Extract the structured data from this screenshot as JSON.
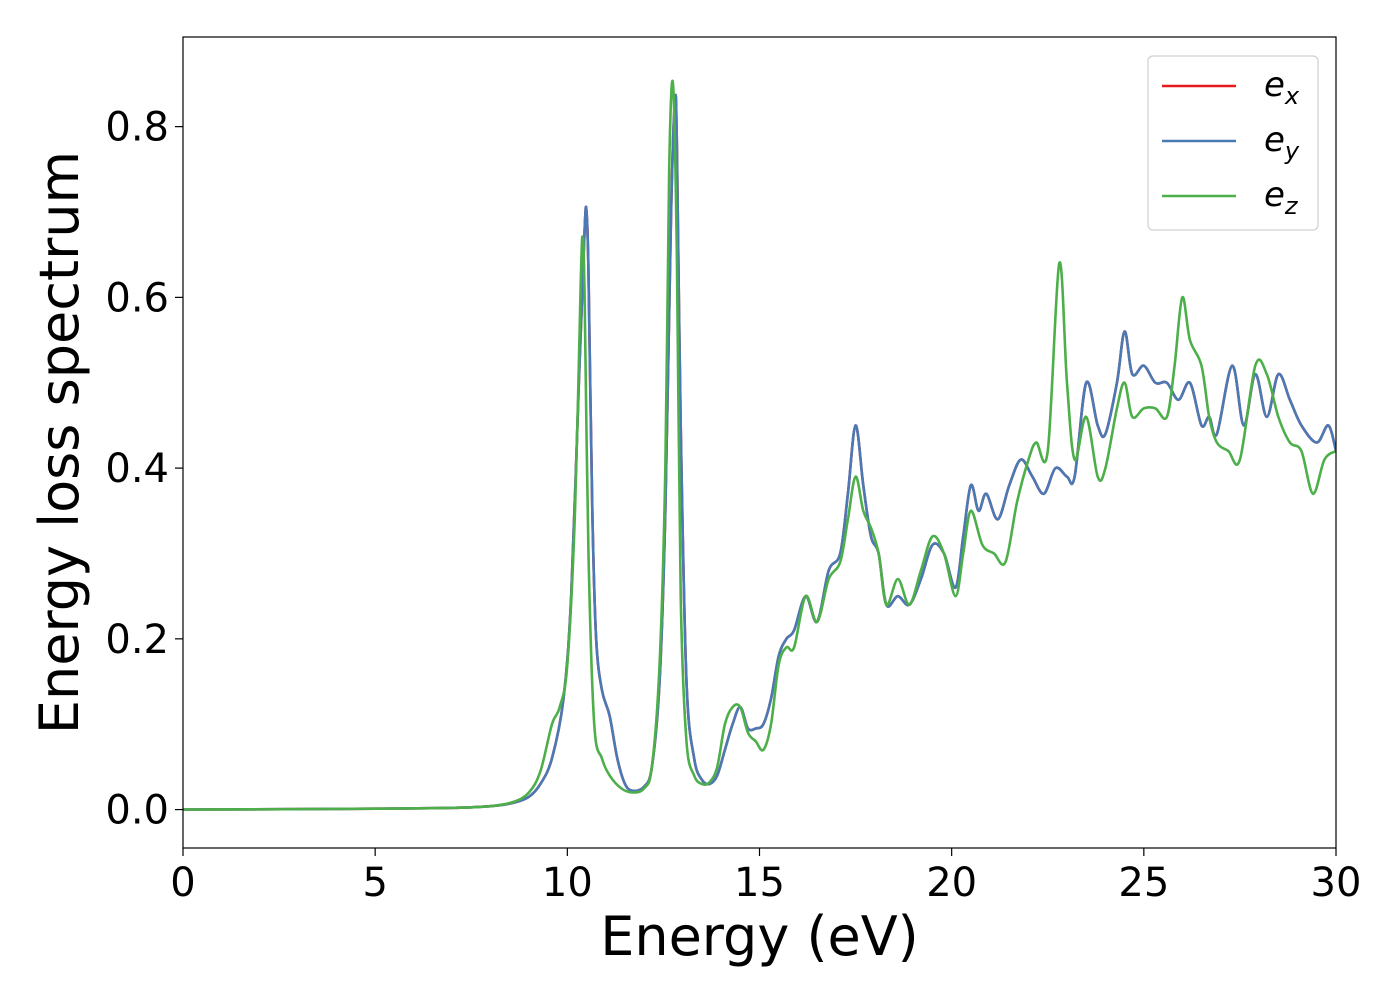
{
  "chart_data": {
    "type": "line",
    "title": "",
    "xlabel": "Energy (eV)",
    "ylabel": "Energy loss spectrum",
    "xlim": [
      0,
      30
    ],
    "ylim": [
      -0.045,
      0.905
    ],
    "xticks": [
      0,
      5,
      10,
      15,
      20,
      25,
      30
    ],
    "xtick_labels": [
      "0",
      "5",
      "10",
      "15",
      "20",
      "25",
      "30"
    ],
    "yticks": [
      0.0,
      0.2,
      0.4,
      0.6,
      0.8
    ],
    "ytick_labels": [
      "0.0",
      "0.2",
      "0.4",
      "0.6",
      "0.8"
    ],
    "grid": false,
    "legend_position": "top-right",
    "series": [
      {
        "name": "e_x",
        "legend_main": "e",
        "legend_sub": "x",
        "color": "#e41a1c",
        "points": [
          [
            0,
            0
          ],
          [
            5,
            0.001
          ],
          [
            7,
            0.002
          ],
          [
            8,
            0.004
          ],
          [
            8.6,
            0.008
          ],
          [
            9,
            0.015
          ],
          [
            9.3,
            0.03
          ],
          [
            9.6,
            0.06
          ],
          [
            9.9,
            0.13
          ],
          [
            10.1,
            0.25
          ],
          [
            10.3,
            0.5
          ],
          [
            10.45,
            0.68
          ],
          [
            10.5,
            0.7
          ],
          [
            10.55,
            0.63
          ],
          [
            10.65,
            0.35
          ],
          [
            10.75,
            0.2
          ],
          [
            10.9,
            0.14
          ],
          [
            11.1,
            0.11
          ],
          [
            11.3,
            0.06
          ],
          [
            11.5,
            0.03
          ],
          [
            11.7,
            0.022
          ],
          [
            12.0,
            0.027
          ],
          [
            12.2,
            0.05
          ],
          [
            12.4,
            0.15
          ],
          [
            12.55,
            0.35
          ],
          [
            12.7,
            0.7
          ],
          [
            12.8,
            0.83
          ],
          [
            12.85,
            0.78
          ],
          [
            12.95,
            0.45
          ],
          [
            13.1,
            0.15
          ],
          [
            13.3,
            0.06
          ],
          [
            13.5,
            0.035
          ],
          [
            13.7,
            0.03
          ],
          [
            13.9,
            0.04
          ],
          [
            14.1,
            0.07
          ],
          [
            14.3,
            0.1
          ],
          [
            14.5,
            0.12
          ],
          [
            14.7,
            0.095
          ],
          [
            14.9,
            0.095
          ],
          [
            15.1,
            0.1
          ],
          [
            15.3,
            0.13
          ],
          [
            15.5,
            0.18
          ],
          [
            15.7,
            0.2
          ],
          [
            15.9,
            0.21
          ],
          [
            16.2,
            0.25
          ],
          [
            16.5,
            0.22
          ],
          [
            16.8,
            0.28
          ],
          [
            17.1,
            0.3
          ],
          [
            17.3,
            0.37
          ],
          [
            17.5,
            0.45
          ],
          [
            17.7,
            0.38
          ],
          [
            17.9,
            0.32
          ],
          [
            18.1,
            0.3
          ],
          [
            18.3,
            0.24
          ],
          [
            18.6,
            0.25
          ],
          [
            18.9,
            0.24
          ],
          [
            19.2,
            0.27
          ],
          [
            19.5,
            0.31
          ],
          [
            19.8,
            0.3
          ],
          [
            20.1,
            0.26
          ],
          [
            20.3,
            0.32
          ],
          [
            20.5,
            0.38
          ],
          [
            20.7,
            0.35
          ],
          [
            20.9,
            0.37
          ],
          [
            21.2,
            0.34
          ],
          [
            21.5,
            0.38
          ],
          [
            21.8,
            0.41
          ],
          [
            22.1,
            0.39
          ],
          [
            22.4,
            0.37
          ],
          [
            22.7,
            0.4
          ],
          [
            23.0,
            0.39
          ],
          [
            23.2,
            0.39
          ],
          [
            23.5,
            0.5
          ],
          [
            23.8,
            0.45
          ],
          [
            24.0,
            0.44
          ],
          [
            24.3,
            0.5
          ],
          [
            24.5,
            0.56
          ],
          [
            24.7,
            0.51
          ],
          [
            25.0,
            0.52
          ],
          [
            25.3,
            0.5
          ],
          [
            25.6,
            0.5
          ],
          [
            25.9,
            0.48
          ],
          [
            26.2,
            0.5
          ],
          [
            26.5,
            0.45
          ],
          [
            26.7,
            0.46
          ],
          [
            26.9,
            0.44
          ],
          [
            27.3,
            0.52
          ],
          [
            27.6,
            0.45
          ],
          [
            27.9,
            0.51
          ],
          [
            28.2,
            0.46
          ],
          [
            28.5,
            0.51
          ],
          [
            28.8,
            0.48
          ],
          [
            29.1,
            0.45
          ],
          [
            29.5,
            0.43
          ],
          [
            29.8,
            0.45
          ],
          [
            30,
            0.42
          ]
        ]
      },
      {
        "name": "e_y",
        "legend_main": "e",
        "legend_sub": "y",
        "color": "#4a7ab5",
        "points": [
          [
            0,
            0
          ],
          [
            5,
            0.001
          ],
          [
            7,
            0.002
          ],
          [
            8,
            0.004
          ],
          [
            8.6,
            0.008
          ],
          [
            9,
            0.015
          ],
          [
            9.3,
            0.03
          ],
          [
            9.6,
            0.06
          ],
          [
            9.9,
            0.13
          ],
          [
            10.1,
            0.25
          ],
          [
            10.3,
            0.5
          ],
          [
            10.45,
            0.68
          ],
          [
            10.5,
            0.7
          ],
          [
            10.55,
            0.63
          ],
          [
            10.65,
            0.35
          ],
          [
            10.75,
            0.2
          ],
          [
            10.9,
            0.14
          ],
          [
            11.1,
            0.11
          ],
          [
            11.3,
            0.06
          ],
          [
            11.5,
            0.03
          ],
          [
            11.7,
            0.022
          ],
          [
            12.0,
            0.027
          ],
          [
            12.2,
            0.05
          ],
          [
            12.4,
            0.15
          ],
          [
            12.55,
            0.35
          ],
          [
            12.7,
            0.7
          ],
          [
            12.8,
            0.83
          ],
          [
            12.85,
            0.78
          ],
          [
            12.95,
            0.45
          ],
          [
            13.1,
            0.15
          ],
          [
            13.3,
            0.06
          ],
          [
            13.5,
            0.035
          ],
          [
            13.7,
            0.03
          ],
          [
            13.9,
            0.04
          ],
          [
            14.1,
            0.07
          ],
          [
            14.3,
            0.1
          ],
          [
            14.5,
            0.12
          ],
          [
            14.7,
            0.095
          ],
          [
            14.9,
            0.095
          ],
          [
            15.1,
            0.1
          ],
          [
            15.3,
            0.13
          ],
          [
            15.5,
            0.18
          ],
          [
            15.7,
            0.2
          ],
          [
            15.9,
            0.21
          ],
          [
            16.2,
            0.25
          ],
          [
            16.5,
            0.22
          ],
          [
            16.8,
            0.28
          ],
          [
            17.1,
            0.3
          ],
          [
            17.3,
            0.37
          ],
          [
            17.5,
            0.45
          ],
          [
            17.7,
            0.38
          ],
          [
            17.9,
            0.32
          ],
          [
            18.1,
            0.3
          ],
          [
            18.3,
            0.24
          ],
          [
            18.6,
            0.25
          ],
          [
            18.9,
            0.24
          ],
          [
            19.2,
            0.27
          ],
          [
            19.5,
            0.31
          ],
          [
            19.8,
            0.3
          ],
          [
            20.1,
            0.26
          ],
          [
            20.3,
            0.32
          ],
          [
            20.5,
            0.38
          ],
          [
            20.7,
            0.35
          ],
          [
            20.9,
            0.37
          ],
          [
            21.2,
            0.34
          ],
          [
            21.5,
            0.38
          ],
          [
            21.8,
            0.41
          ],
          [
            22.1,
            0.39
          ],
          [
            22.4,
            0.37
          ],
          [
            22.7,
            0.4
          ],
          [
            23.0,
            0.39
          ],
          [
            23.2,
            0.39
          ],
          [
            23.5,
            0.5
          ],
          [
            23.8,
            0.45
          ],
          [
            24.0,
            0.44
          ],
          [
            24.3,
            0.5
          ],
          [
            24.5,
            0.56
          ],
          [
            24.7,
            0.51
          ],
          [
            25.0,
            0.52
          ],
          [
            25.3,
            0.5
          ],
          [
            25.6,
            0.5
          ],
          [
            25.9,
            0.48
          ],
          [
            26.2,
            0.5
          ],
          [
            26.5,
            0.45
          ],
          [
            26.7,
            0.46
          ],
          [
            26.9,
            0.44
          ],
          [
            27.3,
            0.52
          ],
          [
            27.6,
            0.45
          ],
          [
            27.9,
            0.51
          ],
          [
            28.2,
            0.46
          ],
          [
            28.5,
            0.51
          ],
          [
            28.8,
            0.48
          ],
          [
            29.1,
            0.45
          ],
          [
            29.5,
            0.43
          ],
          [
            29.8,
            0.45
          ],
          [
            30,
            0.42
          ]
        ]
      },
      {
        "name": "e_z",
        "legend_main": "e",
        "legend_sub": "z",
        "color": "#4daf4a",
        "points": [
          [
            0,
            0
          ],
          [
            5,
            0.001
          ],
          [
            7,
            0.002
          ],
          [
            8,
            0.004
          ],
          [
            8.6,
            0.009
          ],
          [
            9,
            0.02
          ],
          [
            9.3,
            0.045
          ],
          [
            9.6,
            0.1
          ],
          [
            9.8,
            0.12
          ],
          [
            10.0,
            0.17
          ],
          [
            10.2,
            0.35
          ],
          [
            10.35,
            0.62
          ],
          [
            10.4,
            0.67
          ],
          [
            10.45,
            0.6
          ],
          [
            10.55,
            0.3
          ],
          [
            10.7,
            0.1
          ],
          [
            10.9,
            0.06
          ],
          [
            11.1,
            0.04
          ],
          [
            11.4,
            0.025
          ],
          [
            11.7,
            0.02
          ],
          [
            12.0,
            0.025
          ],
          [
            12.2,
            0.05
          ],
          [
            12.4,
            0.17
          ],
          [
            12.55,
            0.4
          ],
          [
            12.65,
            0.75
          ],
          [
            12.75,
            0.85
          ],
          [
            12.85,
            0.65
          ],
          [
            12.95,
            0.25
          ],
          [
            13.1,
            0.08
          ],
          [
            13.3,
            0.04
          ],
          [
            13.5,
            0.03
          ],
          [
            13.7,
            0.032
          ],
          [
            13.9,
            0.05
          ],
          [
            14.1,
            0.1
          ],
          [
            14.3,
            0.12
          ],
          [
            14.5,
            0.12
          ],
          [
            14.7,
            0.09
          ],
          [
            14.9,
            0.08
          ],
          [
            15.1,
            0.07
          ],
          [
            15.3,
            0.1
          ],
          [
            15.5,
            0.17
          ],
          [
            15.7,
            0.19
          ],
          [
            15.9,
            0.19
          ],
          [
            16.2,
            0.25
          ],
          [
            16.5,
            0.22
          ],
          [
            16.8,
            0.27
          ],
          [
            17.1,
            0.29
          ],
          [
            17.3,
            0.34
          ],
          [
            17.5,
            0.39
          ],
          [
            17.7,
            0.35
          ],
          [
            17.9,
            0.33
          ],
          [
            18.1,
            0.3
          ],
          [
            18.3,
            0.24
          ],
          [
            18.6,
            0.27
          ],
          [
            18.9,
            0.24
          ],
          [
            19.2,
            0.28
          ],
          [
            19.5,
            0.32
          ],
          [
            19.8,
            0.3
          ],
          [
            20.1,
            0.25
          ],
          [
            20.3,
            0.3
          ],
          [
            20.5,
            0.35
          ],
          [
            20.8,
            0.31
          ],
          [
            21.1,
            0.3
          ],
          [
            21.4,
            0.29
          ],
          [
            21.7,
            0.36
          ],
          [
            22.0,
            0.41
          ],
          [
            22.2,
            0.43
          ],
          [
            22.5,
            0.42
          ],
          [
            22.8,
            0.64
          ],
          [
            23.0,
            0.5
          ],
          [
            23.2,
            0.41
          ],
          [
            23.5,
            0.46
          ],
          [
            23.8,
            0.39
          ],
          [
            24.0,
            0.4
          ],
          [
            24.3,
            0.47
          ],
          [
            24.5,
            0.5
          ],
          [
            24.7,
            0.46
          ],
          [
            25.0,
            0.47
          ],
          [
            25.3,
            0.47
          ],
          [
            25.6,
            0.46
          ],
          [
            25.8,
            0.52
          ],
          [
            26.0,
            0.6
          ],
          [
            26.2,
            0.55
          ],
          [
            26.5,
            0.52
          ],
          [
            26.7,
            0.46
          ],
          [
            26.9,
            0.43
          ],
          [
            27.2,
            0.42
          ],
          [
            27.5,
            0.41
          ],
          [
            27.9,
            0.52
          ],
          [
            28.2,
            0.51
          ],
          [
            28.5,
            0.46
          ],
          [
            28.8,
            0.43
          ],
          [
            29.1,
            0.42
          ],
          [
            29.4,
            0.37
          ],
          [
            29.7,
            0.41
          ],
          [
            30,
            0.42
          ]
        ]
      }
    ]
  }
}
